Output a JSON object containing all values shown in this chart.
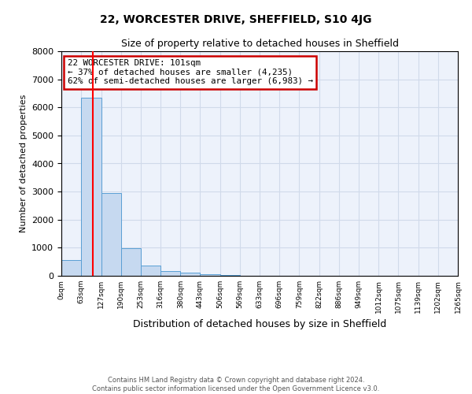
{
  "title": "22, WORCESTER DRIVE, SHEFFIELD, S10 4JG",
  "subtitle": "Size of property relative to detached houses in Sheffield",
  "xlabel": "Distribution of detached houses by size in Sheffield",
  "ylabel": "Number of detached properties",
  "bar_color": "#c6d9f0",
  "bar_edge_color": "#5a9fd4",
  "bar_heights": [
    560,
    6350,
    2950,
    970,
    370,
    155,
    100,
    60,
    35,
    10,
    5,
    3,
    2,
    1,
    0,
    0,
    0,
    0,
    0,
    0
  ],
  "bin_edges": [
    0,
    63,
    127,
    190,
    253,
    316,
    380,
    443,
    506,
    569,
    633,
    696,
    759,
    822,
    886,
    949,
    1012,
    1075,
    1139,
    1202,
    1265
  ],
  "bin_labels": [
    "0sqm",
    "63sqm",
    "127sqm",
    "190sqm",
    "253sqm",
    "316sqm",
    "380sqm",
    "443sqm",
    "506sqm",
    "569sqm",
    "633sqm",
    "696sqm",
    "759sqm",
    "822sqm",
    "886sqm",
    "949sqm",
    "1012sqm",
    "1075sqm",
    "1139sqm",
    "1202sqm",
    "1265sqm"
  ],
  "red_line_x": 101,
  "ylim": [
    0,
    8000
  ],
  "yticks": [
    0,
    1000,
    2000,
    3000,
    4000,
    5000,
    6000,
    7000,
    8000
  ],
  "annotation_text": "22 WORCESTER DRIVE: 101sqm\n← 37% of detached houses are smaller (4,235)\n62% of semi-detached houses are larger (6,983) →",
  "annotation_box_color": "#ffffff",
  "annotation_box_edge_color": "#cc0000",
  "footer_line1": "Contains HM Land Registry data © Crown copyright and database right 2024.",
  "footer_line2": "Contains public sector information licensed under the Open Government Licence v3.0.",
  "grid_color": "#d0daea",
  "background_color": "#edf2fb"
}
